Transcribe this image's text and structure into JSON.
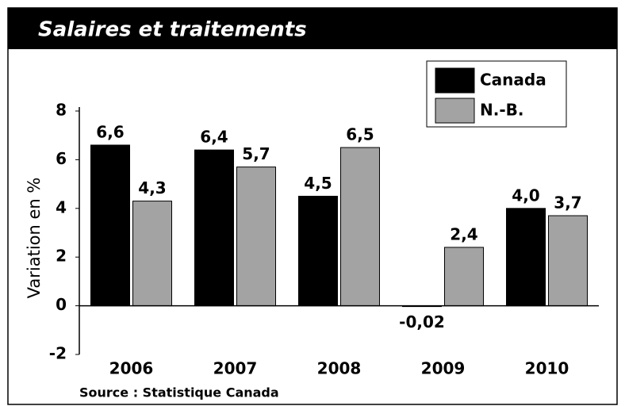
{
  "chart_data": {
    "type": "bar",
    "title": "Salaires et traitements",
    "y_label": "Variation en %",
    "source": "Source : Statistique Canada",
    "categories": [
      "2006",
      "2007",
      "2008",
      "2009",
      "2010"
    ],
    "series": [
      {
        "name": "Canada",
        "color": "#000000",
        "values": [
          6.6,
          6.4,
          4.5,
          -0.02,
          4.0
        ],
        "value_labels": [
          "6,6",
          "6,4",
          "4,5",
          "-0,02",
          "4,0"
        ]
      },
      {
        "name": "N.-B.",
        "color": "#a3a3a3",
        "values": [
          4.3,
          5.7,
          6.5,
          2.4,
          3.7
        ],
        "value_labels": [
          "4,3",
          "5,7",
          "6,5",
          "2,4",
          "3,7"
        ]
      }
    ],
    "ylim": [
      -2,
      8
    ],
    "yticks": [
      8,
      6,
      4,
      2,
      0,
      -2
    ],
    "legend": "upper right"
  }
}
